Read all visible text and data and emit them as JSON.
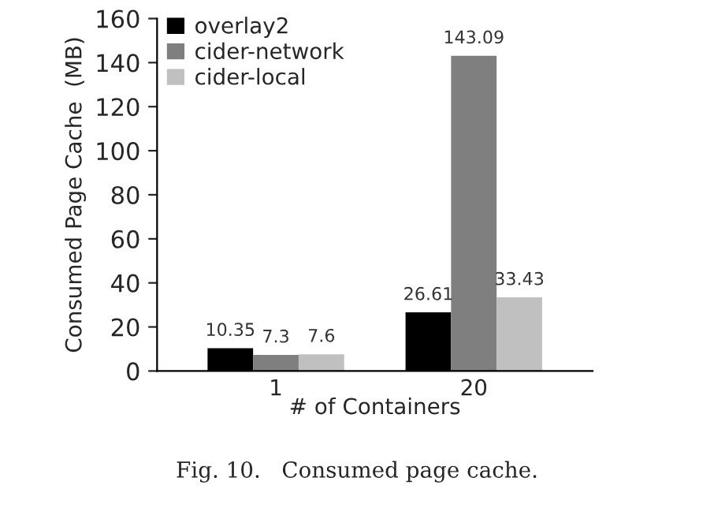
{
  "chart_data": {
    "type": "bar",
    "categories": [
      "1",
      "20"
    ],
    "xlabel": "# of Containers",
    "ylabel": "Consumed Page Cache  (MB)",
    "series": [
      {
        "name": "overlay2",
        "color": "#000000",
        "values": [
          10.35,
          26.61
        ]
      },
      {
        "name": "cider-network",
        "color": "#7f7f7f",
        "values": [
          7.3,
          143.09
        ]
      },
      {
        "name": "cider-local",
        "color": "#c0c0c0",
        "values": [
          7.6,
          33.43
        ]
      }
    ],
    "ylim": [
      0,
      160
    ],
    "yticks": [
      0,
      20,
      40,
      60,
      80,
      100,
      120,
      140,
      160
    ],
    "grid": false,
    "legend": "top left",
    "data_labels": true,
    "annotations": [
      "Fig. 10.   Consumed page cache."
    ]
  }
}
